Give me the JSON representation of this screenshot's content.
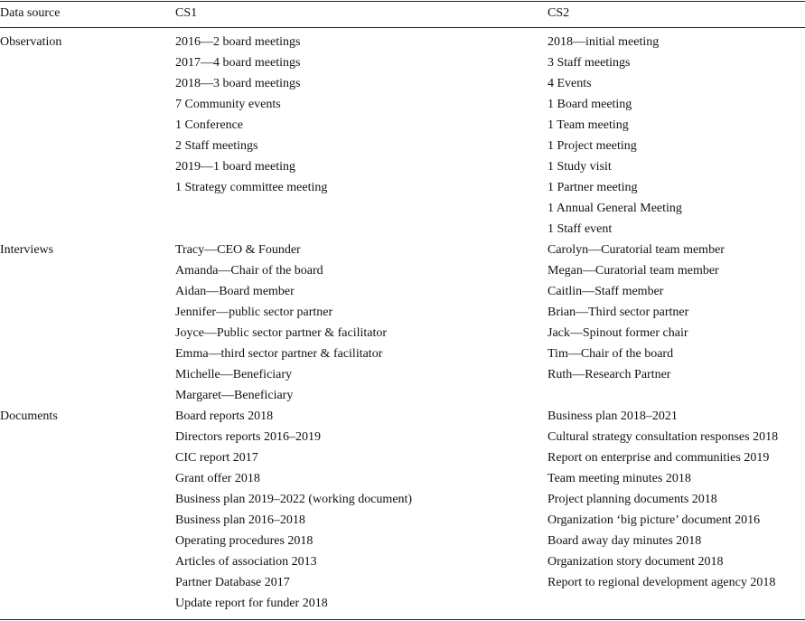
{
  "table": {
    "header": [
      "Data source",
      "CS1",
      "CS2"
    ],
    "rows": [
      {
        "source": "Observation",
        "cs1": [
          "2016—2 board meetings",
          "2017—4 board meetings",
          "2018—3 board meetings",
          "7 Community events",
          "1 Conference",
          "2 Staff meetings",
          "2019—1 board meeting",
          "1 Strategy committee meeting"
        ],
        "cs2": [
          "2018—initial meeting",
          "3 Staff meetings",
          "4 Events",
          "1 Board meeting",
          "1 Team meeting",
          "1 Project meeting",
          "1 Study visit",
          "1 Partner meeting",
          "1 Annual General Meeting",
          "1 Staff event"
        ]
      },
      {
        "source": "Interviews",
        "cs1": [
          "Tracy—CEO & Founder",
          "Amanda—Chair of the board",
          "Aidan—Board member",
          "Jennifer—public sector partner",
          "Joyce—Public sector partner & facilitator",
          "Emma—third sector partner & facilitator",
          "Michelle—Beneficiary",
          "Margaret—Beneficiary"
        ],
        "cs2": [
          "Carolyn—Curatorial team member",
          "Megan—Curatorial team member",
          "Caitlin—Staff member",
          "Brian—Third sector partner",
          "Jack—Spinout former chair",
          "Tim—Chair of the board",
          "Ruth—Research Partner"
        ]
      },
      {
        "source": "Documents",
        "cs1": [
          "Board reports 2018",
          "Directors reports 2016–2019",
          "CIC report 2017",
          "Grant offer 2018",
          "Business plan 2019–2022 (working document)",
          "Business plan 2016–2018",
          "Operating procedures 2018",
          "Articles of association 2013",
          "Partner Database 2017",
          "Update report for funder 2018"
        ],
        "cs2": [
          "Business plan 2018–2021",
          "Cultural strategy consultation responses 2018",
          "Report on enterprise and communities 2019",
          "Team meeting minutes 2018",
          "Project planning documents 2018",
          "Organization ‘big picture’ document 2016",
          "Board away day minutes 2018",
          "Organization story document 2018",
          "Report to regional development agency 2018"
        ]
      }
    ]
  }
}
